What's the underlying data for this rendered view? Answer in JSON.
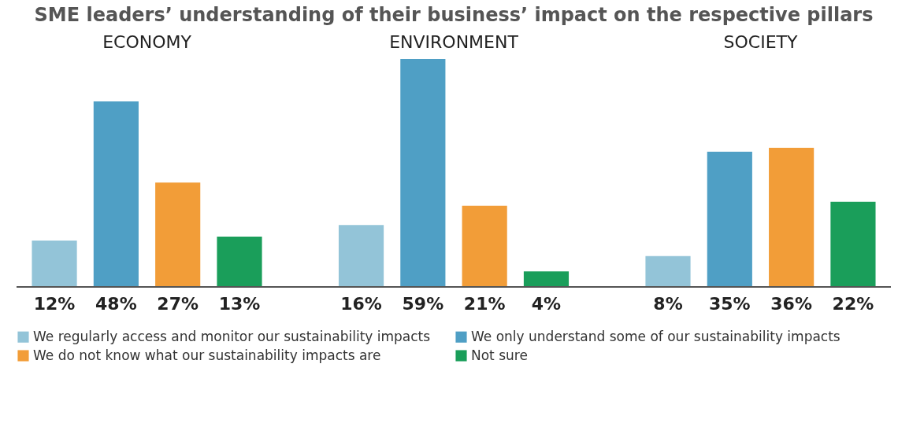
{
  "chart_data": {
    "type": "bar",
    "title": "SME leaders’ understanding of their business’ impact on the respective pillars",
    "categories": [
      "ECONOMY",
      "ENVIRONMENT",
      "SOCIETY"
    ],
    "series": [
      {
        "name": "We regularly access and monitor our sustainability impacts",
        "color": "#93c4d8",
        "values": [
          12,
          16,
          8
        ],
        "value_labels": [
          "12%",
          "16%",
          "8%"
        ]
      },
      {
        "name": "We only understand some of our sustainability impacts",
        "color": "#4f9fc5",
        "values": [
          48,
          59,
          35
        ],
        "value_labels": [
          "48%",
          "59%",
          "35%"
        ]
      },
      {
        "name": "We do not know what our sustainability impacts are",
        "color": "#f29d38",
        "values": [
          27,
          21,
          36
        ],
        "value_labels": [
          "27%",
          "21%",
          "36%"
        ]
      },
      {
        "name": "Not sure",
        "color": "#1a9e5a",
        "values": [
          13,
          4,
          22
        ],
        "value_labels": [
          "13%",
          "4%",
          "22%"
        ]
      }
    ],
    "legend": "bottom",
    "grid": false,
    "tick_labels": "x"
  }
}
